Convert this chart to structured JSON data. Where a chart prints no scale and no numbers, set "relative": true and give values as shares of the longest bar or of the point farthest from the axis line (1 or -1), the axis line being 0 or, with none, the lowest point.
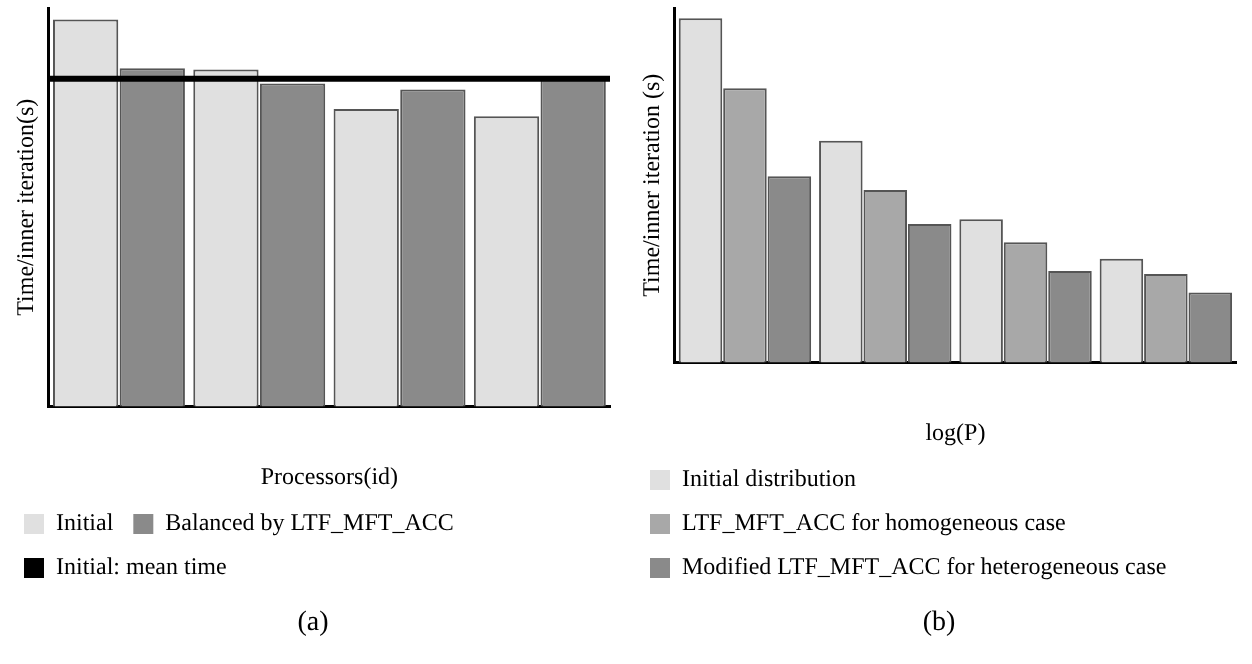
{
  "chart_data": [
    {
      "type": "bar",
      "relative": true,
      "xlabel": "Processors(id)",
      "ylabel": "Time/inner iteration(s)",
      "categories": [
        null,
        null,
        null,
        null
      ],
      "legend": "bottom",
      "series": [
        {
          "name": "Initial",
          "color": "#e0e0e0",
          "values": [
            1,
            0.871,
            0.769,
            0.75
          ]
        },
        {
          "name": "Balanced by LTF_MFT_ACC",
          "color": "#8a8a8a",
          "values": [
            0.874,
            0.835,
            0.819,
            0.85
          ]
        }
      ],
      "ref_lines": [
        {
          "axis": "y",
          "value": 0.847,
          "label": "Initial: mean time",
          "color": "#000000"
        }
      ],
      "annotations": [
        "(a)"
      ]
    },
    {
      "type": "bar",
      "relative": true,
      "xlabel": "log(P)",
      "ylabel": "Time/inner iteration (s)",
      "categories": [
        null,
        null,
        null,
        null
      ],
      "legend": "bottom",
      "series": [
        {
          "name": "Initial distribution",
          "color": "#e0e0e0",
          "values": [
            1,
            0.644,
            0.416,
            0.301
          ]
        },
        {
          "name": "LTF_MFT_ACC for homogeneous case",
          "color": "#a8a8a8",
          "values": [
            0.797,
            0.501,
            0.349,
            0.257
          ]
        },
        {
          "name": "Modified LTF_MFT_ACC for heterogeneous case",
          "color": "#8a8a8a",
          "values": [
            0.541,
            0.402,
            0.266,
            0.203
          ]
        }
      ],
      "annotations": [
        "(b)"
      ]
    }
  ]
}
